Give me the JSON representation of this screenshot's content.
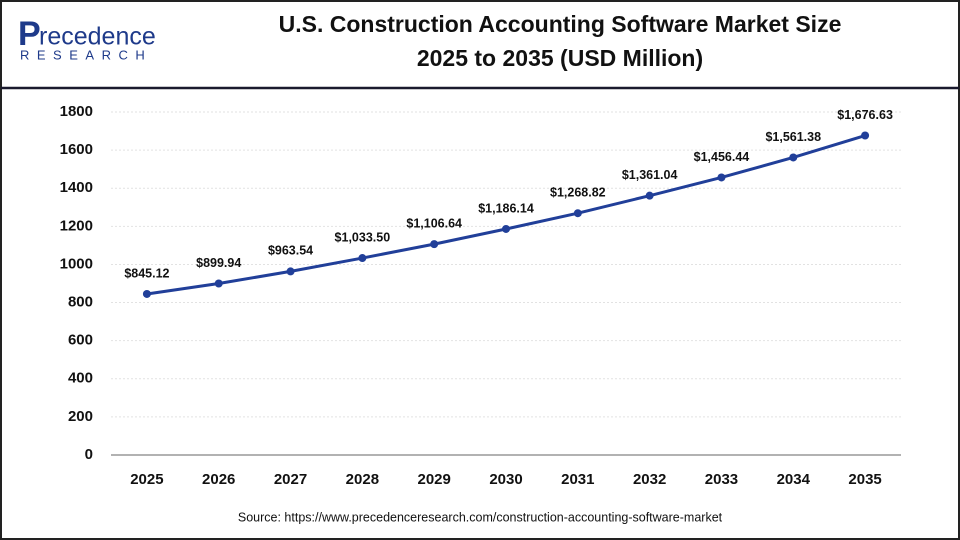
{
  "logo": {
    "name": "recedence",
    "initial": "P",
    "tagline": "RESEARCH"
  },
  "chart_data": {
    "type": "line",
    "title": "U.S. Construction Accounting Software Market Size",
    "subtitle": "2025 to 2035 (USD Million)",
    "categories": [
      "2025",
      "2026",
      "2027",
      "2028",
      "2029",
      "2030",
      "2031",
      "2032",
      "2033",
      "2034",
      "2035"
    ],
    "values": [
      845.12,
      899.94,
      963.54,
      1033.5,
      1106.64,
      1186.14,
      1268.82,
      1361.04,
      1456.44,
      1561.38,
      1676.63
    ],
    "value_labels": [
      "$845.12",
      "$899.94",
      "$963.54",
      "$1,033.50",
      "$1,106.64",
      "$1,186.14",
      "$1,268.82",
      "$1,361.04",
      "$1,456.44",
      "$1,561.38",
      "$1,676.63"
    ],
    "color": "#213f99",
    "ylim": [
      0,
      1800
    ],
    "yticks": [
      0,
      200,
      400,
      600,
      800,
      1000,
      1200,
      1400,
      1600,
      1800
    ],
    "grid": true,
    "source": "Source: https://www.precedenceresearch.com/construction-accounting-software-market"
  }
}
